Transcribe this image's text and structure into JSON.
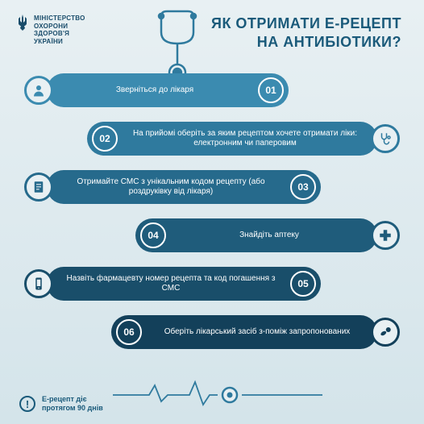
{
  "ministry": {
    "line1": "МІНІСТЕРСТВО",
    "line2": "ОХОРОНИ",
    "line3": "ЗДОРОВ'Я",
    "line4": "УКРАЇНИ"
  },
  "title": {
    "line1": "ЯК ОТРИМАТИ Е-РЕЦЕПТ",
    "line2": "НА АНТИБІОТИКИ?"
  },
  "colors": {
    "bg_top": "#e8f0f3",
    "bg_bottom": "#d4e4ea",
    "text_dark": "#1a5a7a",
    "step1": "#3b8bb0",
    "step2": "#2f7a9e",
    "step3": "#266a8c",
    "step4": "#1f5c7b",
    "step5": "#194e6a",
    "step6": "#13405a"
  },
  "steps": [
    {
      "num": "01",
      "text": "Зверніться до лікаря",
      "icon": "person-icon",
      "side": "left",
      "color": "#3b8bb0",
      "w": "w1"
    },
    {
      "num": "02",
      "text": "На прийомі оберіть за яким рецептом хочете отримати ліки: електронним чи паперовим",
      "icon": "stethoscope-icon",
      "side": "right",
      "color": "#2f7a9e",
      "w": "w2"
    },
    {
      "num": "03",
      "text": "Отримайте СМС з унікальним кодом рецепту (або роздруківку від лікаря)",
      "icon": "document-icon",
      "side": "left",
      "color": "#266a8c",
      "w": "w3"
    },
    {
      "num": "04",
      "text": "Знайдіть аптеку",
      "icon": "cross-icon",
      "side": "right",
      "color": "#1f5c7b",
      "w": "w4"
    },
    {
      "num": "05",
      "text": "Назвіть фармацевту номер рецепта та код погашення з СМС",
      "icon": "phone-icon",
      "side": "left",
      "color": "#194e6a",
      "w": "w5"
    },
    {
      "num": "06",
      "text": "Оберіть лікарський засіб з-поміж запропонованих",
      "icon": "pills-icon",
      "side": "right",
      "color": "#13405a",
      "w": "w6"
    }
  ],
  "footer": {
    "icon": "!",
    "line1": "Е-рецепт діє",
    "line2": "протягом 90 днів"
  }
}
